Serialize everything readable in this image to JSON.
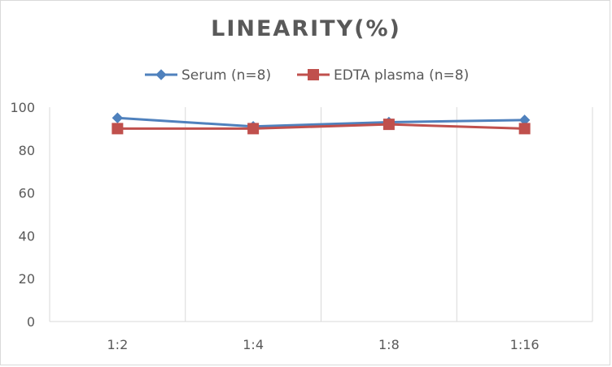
{
  "chart_data": {
    "type": "line",
    "title": "LINEARITY(%)",
    "xlabel": "",
    "ylabel": "",
    "categories": [
      "1:2",
      "1:4",
      "1:8",
      "1:16"
    ],
    "series": [
      {
        "name": "Serum (n=8)",
        "values": [
          95,
          91,
          93,
          94
        ],
        "color": "#4f81bd",
        "marker": "diamond"
      },
      {
        "name": "EDTA plasma (n=8)",
        "values": [
          90,
          90,
          92,
          90
        ],
        "color": "#c0504d",
        "marker": "square"
      }
    ],
    "ylim": [
      0,
      100
    ],
    "yticks": [
      0,
      20,
      40,
      60,
      80,
      100
    ],
    "grid": "vertical",
    "legend_position": "top"
  }
}
